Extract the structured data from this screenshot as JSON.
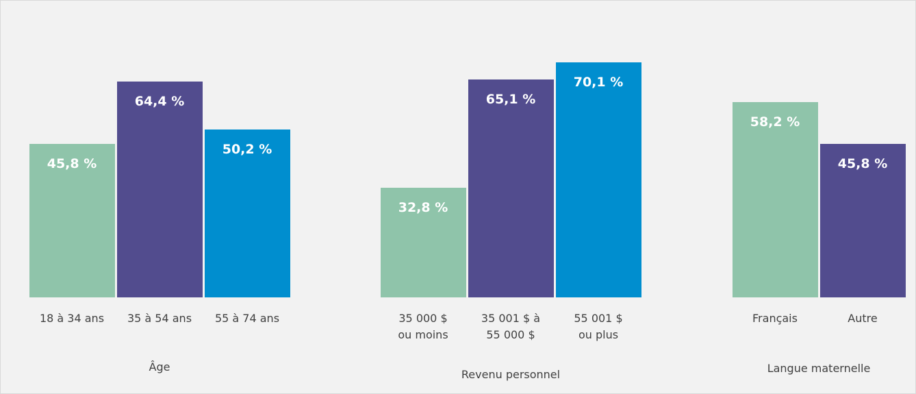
{
  "chart_data": [
    {
      "type": "bar",
      "xlabel": "Âge",
      "categories": [
        "18 à 34 ans",
        "35 à 54 ans",
        "55 à 74 ans"
      ],
      "values": [
        45.8,
        64.4,
        50.2
      ],
      "value_labels": [
        "45,8 %",
        "64,4 %",
        "50,2 %"
      ],
      "colors": [
        "#8fc4aa",
        "#524c8e",
        "#008ecf"
      ]
    },
    {
      "type": "bar",
      "xlabel": "Revenu personnel",
      "categories": [
        "35 000 $\nou moins",
        "35 001 $ à\n55 000 $",
        "55 001 $\nou plus"
      ],
      "values": [
        32.8,
        65.1,
        70.1
      ],
      "value_labels": [
        "32,8 %",
        "65,1 %",
        "70,1 %"
      ],
      "colors": [
        "#8fc4aa",
        "#524c8e",
        "#008ecf"
      ]
    },
    {
      "type": "bar",
      "xlabel": "Langue maternelle",
      "categories": [
        "Français",
        "Autre"
      ],
      "values": [
        58.2,
        45.8
      ],
      "value_labels": [
        "58,2 %",
        "45,8 %"
      ],
      "colors": [
        "#8fc4aa",
        "#524c8e"
      ]
    }
  ]
}
